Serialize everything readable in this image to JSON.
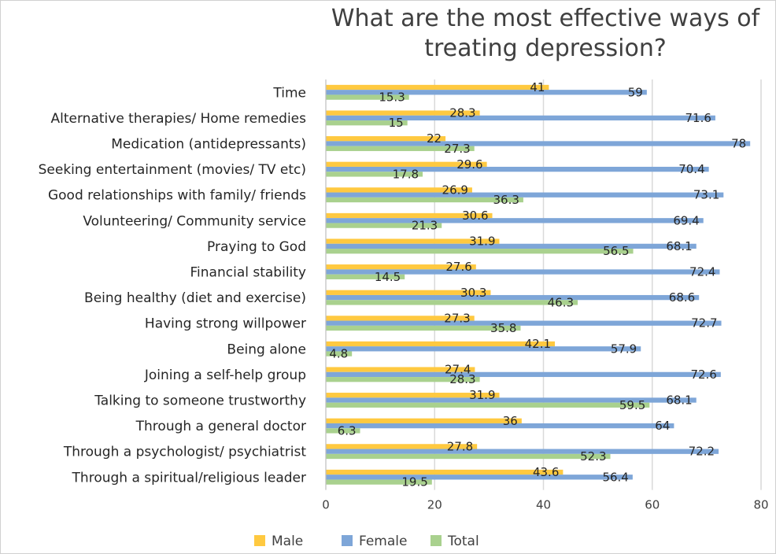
{
  "chart_data": {
    "type": "bar",
    "orientation": "horizontal",
    "title_lines": [
      "What are the most effective ways of",
      "treating depression?"
    ],
    "categories": [
      "Time",
      "Alternative therapies/ Home remedies",
      "Medication (antidepressants)",
      "Seeking entertainment (movies/ TV etc)",
      "Good relationships with family/ friends",
      "Volunteering/ Community service",
      "Praying to God",
      "Financial stability",
      "Being healthy (diet and exercise)",
      "Having strong willpower",
      "Being alone",
      "Joining a self-help group",
      "Talking to someone trustworthy",
      "Through a general doctor",
      "Through a psychologist/ psychiatrist",
      "Through a spiritual/religious leader"
    ],
    "series": [
      {
        "name": "Male",
        "color": "#ffc940",
        "values": [
          41,
          28.3,
          22,
          29.6,
          26.9,
          30.6,
          31.9,
          27.6,
          30.3,
          27.3,
          42.1,
          27.4,
          31.9,
          36,
          27.8,
          43.6
        ]
      },
      {
        "name": "Female",
        "color": "#7ea6d8",
        "values": [
          59,
          71.6,
          78,
          70.4,
          73.1,
          69.4,
          68.1,
          72.4,
          68.6,
          72.7,
          57.9,
          72.6,
          68.1,
          64,
          72.2,
          56.4
        ]
      },
      {
        "name": "Total",
        "color": "#a9d18e",
        "values": [
          15.3,
          15,
          27.3,
          17.8,
          36.3,
          21.3,
          56.5,
          14.5,
          46.3,
          35.8,
          4.8,
          28.3,
          59.5,
          6.3,
          52.3,
          19.5
        ]
      }
    ],
    "xlim": [
      0,
      80
    ],
    "xticks": [
      0,
      20,
      40,
      60,
      80
    ],
    "grid": true,
    "legend_position": "bottom"
  }
}
